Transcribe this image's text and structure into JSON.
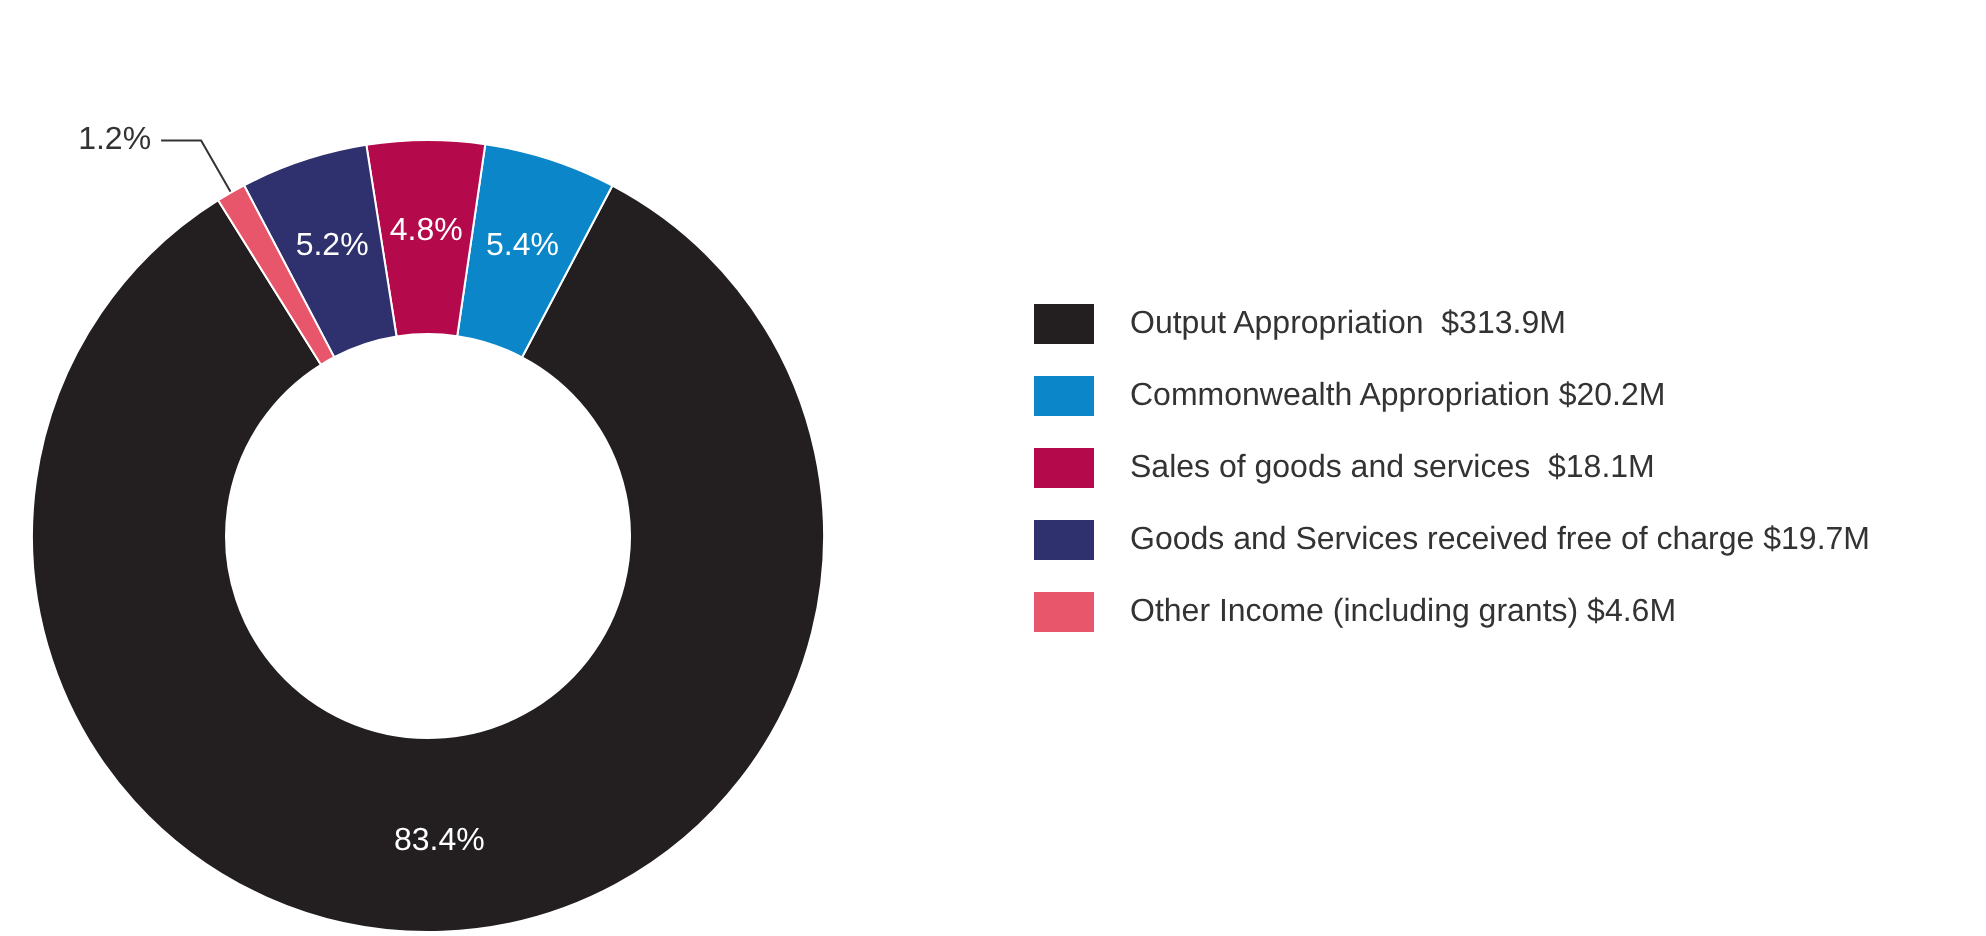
{
  "chart_data": {
    "type": "donut",
    "categories": [
      "Output Appropriation  $313.9M",
      "Commonwealth Appropriation $20.2M",
      "Sales of goods and services  $18.1M",
      "Goods and Services received free of charge $19.7M",
      "Other Income (including grants) $4.6M"
    ],
    "values": [
      83.4,
      5.4,
      4.8,
      5.2,
      1.2
    ],
    "colors": [
      "#231f20",
      "#0a86c9",
      "#b40a4c",
      "#2f306e",
      "#e8566b"
    ],
    "value_labels": [
      "83.4%",
      "5.4%",
      "4.8%",
      "5.2%",
      "1.2%"
    ],
    "legend": "right"
  }
}
